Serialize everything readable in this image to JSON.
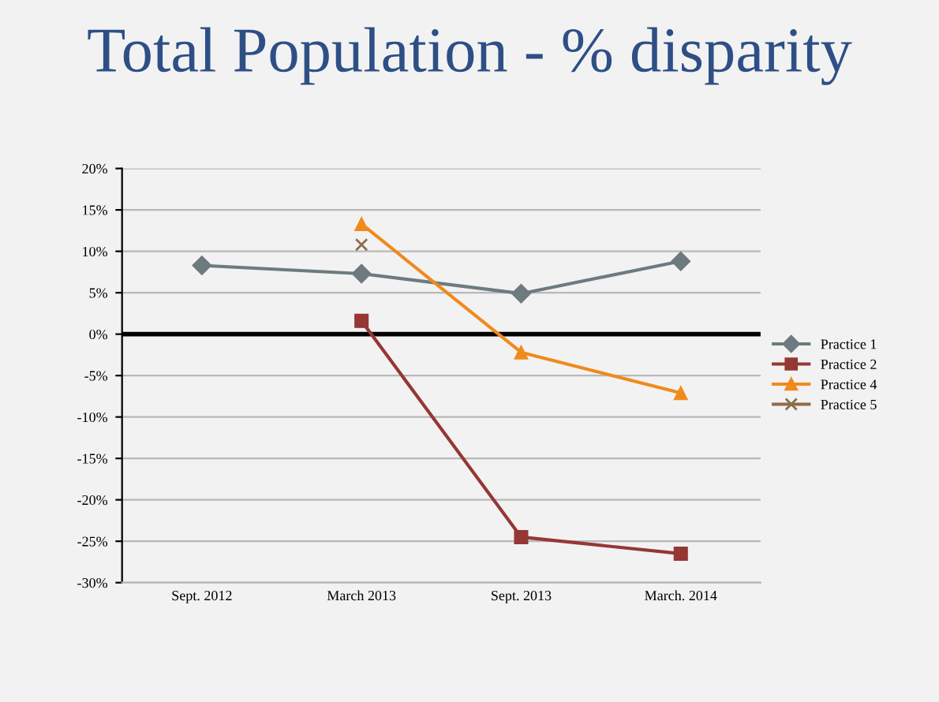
{
  "chart_data": {
    "type": "line",
    "title": "Total Population - % disparity",
    "categories": [
      "Sept. 2012",
      "March 2013",
      "Sept. 2013",
      "March. 2014"
    ],
    "series": [
      {
        "name": "Practice 1",
        "color": "#6d7b80",
        "marker": "diamond",
        "values": [
          8.3,
          7.3,
          4.9,
          8.8
        ]
      },
      {
        "name": "Practice 2",
        "color": "#953735",
        "marker": "square",
        "values": [
          null,
          1.6,
          -24.5,
          -26.5
        ]
      },
      {
        "name": "Practice 4",
        "color": "#f08a1c",
        "marker": "triangle",
        "values": [
          null,
          13.3,
          -2.2,
          -7.1
        ]
      },
      {
        "name": "Practice 5",
        "color": "#8b6d4a",
        "marker": "cross",
        "values": [
          null,
          10.8,
          null,
          null
        ]
      }
    ],
    "ylim": [
      -30,
      20
    ],
    "yticks": [
      {
        "value": -30,
        "label": "-30%"
      },
      {
        "value": -25,
        "label": "-25%"
      },
      {
        "value": -20,
        "label": "-20%"
      },
      {
        "value": -15,
        "label": "-15%"
      },
      {
        "value": -10,
        "label": "-10%"
      },
      {
        "value": -5,
        "label": "-5%"
      },
      {
        "value": 0,
        "label": "0%"
      },
      {
        "value": 5,
        "label": "5%"
      },
      {
        "value": 10,
        "label": "10%"
      },
      {
        "value": 15,
        "label": "15%"
      },
      {
        "value": 20,
        "label": "20%"
      }
    ],
    "ref_lines": [
      {
        "axis": "y",
        "value": 0,
        "color": "#000000"
      }
    ],
    "grid": "y",
    "legend": "right"
  }
}
